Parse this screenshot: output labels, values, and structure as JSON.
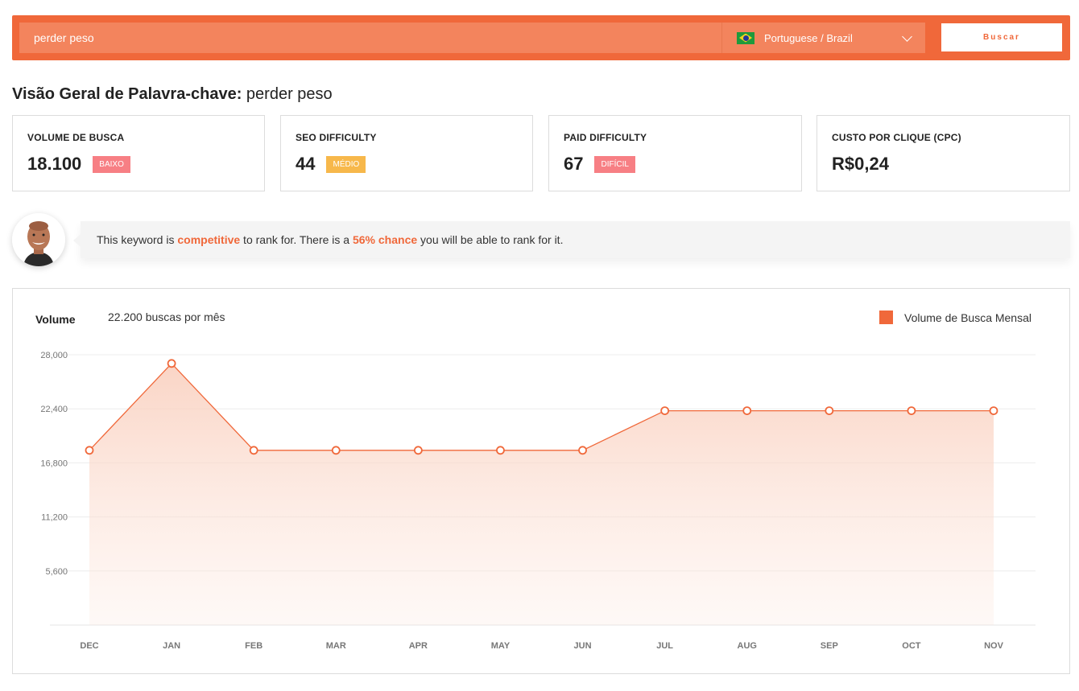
{
  "search": {
    "value": "perder peso",
    "language": "Portuguese / Brazil",
    "button": "Buscar"
  },
  "title": {
    "prefix": "Visão Geral de Palavra-chave:",
    "keyword": "perder peso"
  },
  "cards": [
    {
      "label": "VOLUME DE BUSCA",
      "value": "18.100",
      "badge": "BAIXO"
    },
    {
      "label": "SEO DIFFICULTY",
      "value": "44",
      "badge": "MÉDIO"
    },
    {
      "label": "PAID DIFFICULTY",
      "value": "67",
      "badge": "DIFÍCIL"
    },
    {
      "label": "CUSTO POR CLIQUE (CPC)",
      "value": "R$0,24"
    }
  ],
  "tip": {
    "t1": "This keyword is ",
    "h1": "competitive",
    "t2": " to rank for. There is a ",
    "h2": "56% chance",
    "t3": " you will be able to rank for it."
  },
  "chart_header": {
    "label": "Volume",
    "sub": "22.200 buscas por mês",
    "legend": "Volume de Busca Mensal"
  },
  "colors": {
    "accent": "#f0683a",
    "badge_red": "#f77f84",
    "badge_yellow": "#f7b84b"
  },
  "chart_data": {
    "type": "area",
    "categories": [
      "DEC",
      "JAN",
      "FEB",
      "MAR",
      "APR",
      "MAY",
      "JUN",
      "JUL",
      "AUG",
      "SEP",
      "OCT",
      "NOV"
    ],
    "series": [
      {
        "name": "Volume de Busca Mensal",
        "values": [
          18100,
          27100,
          18100,
          18100,
          18100,
          18100,
          18100,
          22200,
          22200,
          22200,
          22200,
          22200
        ]
      }
    ],
    "yticks": [
      "5,600",
      "11,200",
      "16,800",
      "22,400",
      "28,000"
    ],
    "ylim": [
      0,
      28000
    ],
    "grid": true,
    "legend": "top-right"
  }
}
